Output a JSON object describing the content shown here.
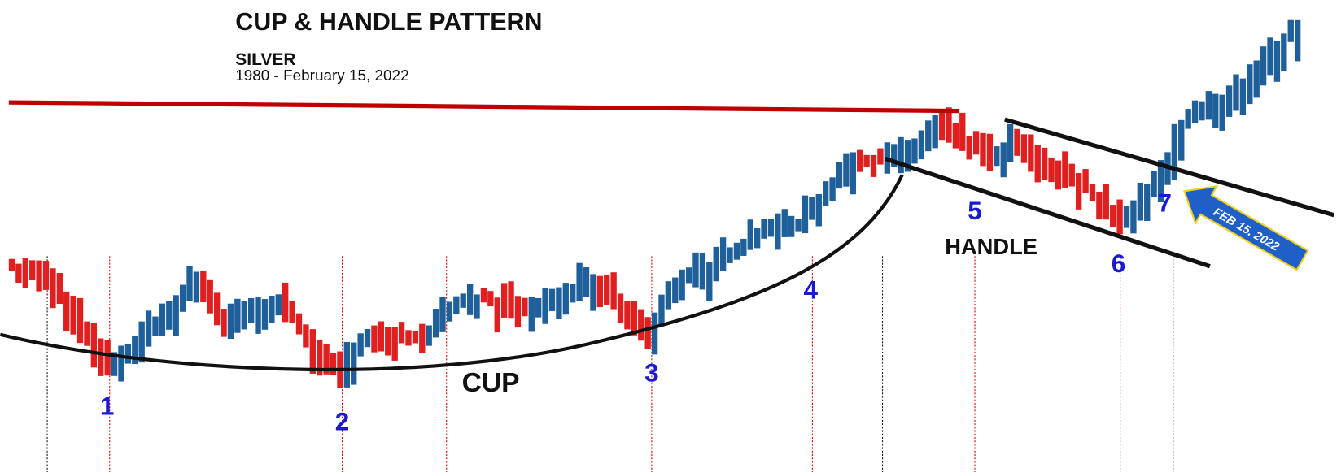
{
  "title": "CUP & HANDLE PATTERN",
  "subtitle": "SILVER",
  "date_range": "1980 - February 15, 2022",
  "points": [
    "1",
    "2",
    "3",
    "4",
    "5",
    "6",
    "7"
  ],
  "labels": {
    "cup": "CUP",
    "handle": "HANDLE",
    "arrow": "FEB 15, 2022"
  }
}
